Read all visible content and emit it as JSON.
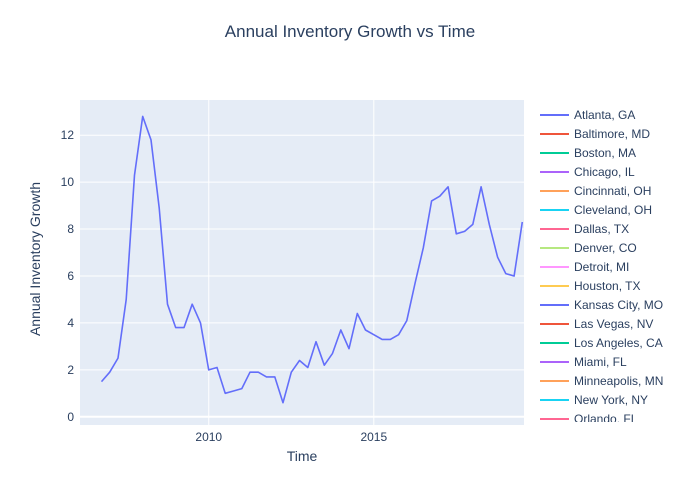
{
  "chart_data": {
    "type": "line",
    "title": "Annual Inventory Growth vs Time",
    "xlabel": "Time",
    "ylabel": "Annual Inventory Growth",
    "xlim": [
      2006.1,
      2019.55
    ],
    "ylim": [
      -0.35,
      13.5
    ],
    "x_ticks": [
      2010,
      2015
    ],
    "x_tick_labels": [
      "2010",
      "2015"
    ],
    "y_ticks": [
      0,
      2,
      4,
      6,
      8,
      10,
      12
    ],
    "y_tick_labels": [
      "0",
      "2",
      "4",
      "6",
      "8",
      "10",
      "12"
    ],
    "grid": true,
    "legend_placement": "right",
    "background": "#e5ecf6",
    "series": [
      {
        "name": "Atlanta, GA",
        "color": "#636efa",
        "x": [
          2006.75,
          2007.0,
          2007.25,
          2007.5,
          2007.75,
          2008.0,
          2008.25,
          2008.5,
          2008.75,
          2009.0,
          2009.25,
          2009.5,
          2009.75,
          2010.0,
          2010.25,
          2010.5,
          2010.75,
          2011.0,
          2011.25,
          2011.5,
          2011.75,
          2012.0,
          2012.25,
          2012.5,
          2012.75,
          2013.0,
          2013.25,
          2013.5,
          2013.75,
          2014.0,
          2014.25,
          2014.5,
          2014.75,
          2015.0,
          2015.25,
          2015.5,
          2015.75,
          2016.0,
          2016.25,
          2016.5,
          2016.75,
          2017.0,
          2017.25,
          2017.5,
          2017.75,
          2018.0,
          2018.25,
          2018.5,
          2018.75,
          2019.0,
          2019.25,
          2019.5
        ],
        "y": [
          1.5,
          1.9,
          2.5,
          5.0,
          10.3,
          12.8,
          11.8,
          8.9,
          4.8,
          3.8,
          3.8,
          4.8,
          4.0,
          2.0,
          2.1,
          1.0,
          1.1,
          1.2,
          1.9,
          1.9,
          1.7,
          1.7,
          0.6,
          1.9,
          2.4,
          2.1,
          3.2,
          2.2,
          2.7,
          3.7,
          2.9,
          4.4,
          3.7,
          3.5,
          3.3,
          3.3,
          3.5,
          4.1,
          5.7,
          7.2,
          9.2,
          9.4,
          9.8,
          7.8,
          7.9,
          8.2,
          9.8,
          8.2,
          6.8,
          6.1,
          6.0,
          8.3
        ]
      },
      {
        "name": "Baltimore, MD",
        "color": "#ef553b",
        "x": [],
        "y": []
      },
      {
        "name": "Boston, MA",
        "color": "#00cc96",
        "x": [],
        "y": []
      },
      {
        "name": "Chicago, IL",
        "color": "#ab63fa",
        "x": [],
        "y": []
      },
      {
        "name": "Cincinnati, OH",
        "color": "#ffa15a",
        "x": [],
        "y": []
      },
      {
        "name": "Cleveland, OH",
        "color": "#19d3f3",
        "x": [],
        "y": []
      },
      {
        "name": "Dallas, TX",
        "color": "#ff6692",
        "x": [],
        "y": []
      },
      {
        "name": "Denver, CO",
        "color": "#b6e880",
        "x": [],
        "y": []
      },
      {
        "name": "Detroit, MI",
        "color": "#ff97ff",
        "x": [],
        "y": []
      },
      {
        "name": "Houston, TX",
        "color": "#fecb52",
        "x": [],
        "y": []
      },
      {
        "name": "Kansas City, MO",
        "color": "#636efa",
        "x": [],
        "y": []
      },
      {
        "name": "Las Vegas, NV",
        "color": "#ef553b",
        "x": [],
        "y": []
      },
      {
        "name": "Los Angeles, CA",
        "color": "#00cc96",
        "x": [],
        "y": []
      },
      {
        "name": "Miami, FL",
        "color": "#ab63fa",
        "x": [],
        "y": []
      },
      {
        "name": "Minneapolis, MN",
        "color": "#ffa15a",
        "x": [],
        "y": []
      },
      {
        "name": "New York, NY",
        "color": "#19d3f3",
        "x": [],
        "y": []
      },
      {
        "name": "Orlando, FL",
        "color": "#ff6692",
        "x": [],
        "y": []
      }
    ]
  }
}
